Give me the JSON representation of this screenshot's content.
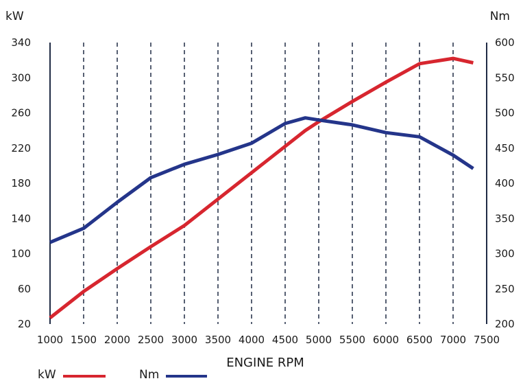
{
  "chart_data": {
    "type": "line",
    "xlabel": "ENGINE RPM",
    "x_ticks": [
      "1000",
      "1500",
      "2000",
      "2500",
      "3000",
      "3500",
      "4000",
      "4500",
      "5000",
      "5500",
      "6000",
      "6500",
      "7000",
      "7500"
    ],
    "xlim": [
      1000,
      7500
    ],
    "y_left": {
      "unit": "kW",
      "ticks": [
        "20",
        "60",
        "100",
        "140",
        "180",
        "220",
        "260",
        "300",
        "340"
      ],
      "ylim": [
        20,
        340
      ]
    },
    "y_right": {
      "unit": "Nm",
      "ticks": [
        "200",
        "250",
        "300",
        "350",
        "400",
        "450",
        "500",
        "550",
        "600"
      ],
      "ylim": [
        200,
        600
      ]
    },
    "grid": "vertical dashed",
    "series": [
      {
        "name": "kW",
        "axis": "left",
        "color": "#d7262f",
        "x": [
          1000,
          1500,
          2000,
          2500,
          3000,
          3100,
          4000,
          4800,
          5000,
          5500,
          6000,
          6500,
          7000,
          7300
        ],
        "y": [
          27,
          57,
          83,
          108,
          132,
          138,
          192,
          240,
          250,
          273,
          295,
          316,
          322,
          317
        ]
      },
      {
        "name": "Nm",
        "axis": "right",
        "color": "#24358a",
        "x": [
          1000,
          1500,
          2000,
          2500,
          3000,
          3500,
          4000,
          4500,
          4800,
          5000,
          5500,
          6000,
          6500,
          7000,
          7300
        ],
        "y": [
          316,
          336,
          373,
          408,
          427,
          441,
          457,
          485,
          493,
          490,
          483,
          472,
          466,
          440,
          421
        ]
      }
    ],
    "legend": {
      "placement": "bottom-left",
      "entries": [
        "kW",
        "Nm"
      ]
    }
  }
}
